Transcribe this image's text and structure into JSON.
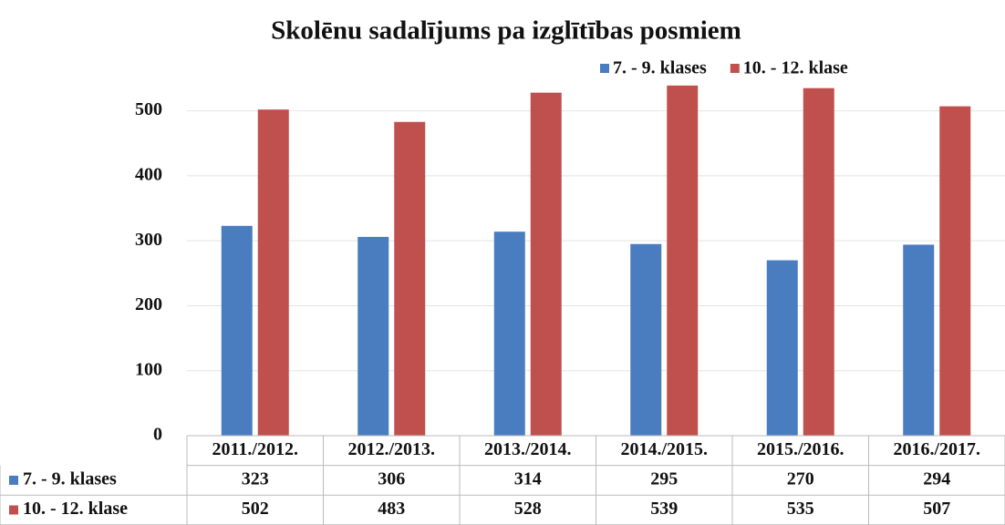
{
  "chart_data": {
    "type": "bar",
    "title": "Skolēnu sadalījums pa izglītības posmiem",
    "categories": [
      "2011./2012.",
      "2012./2013.",
      "2013./2014.",
      "2014./2015.",
      "2015./2016.",
      "2016./2017."
    ],
    "series": [
      {
        "name": "7. - 9. klases",
        "color": "#4a7cc0",
        "values": [
          323,
          306,
          314,
          295,
          270,
          294
        ]
      },
      {
        "name": "10. - 12. klase",
        "color": "#c0504d",
        "values": [
          502,
          483,
          528,
          539,
          535,
          507
        ]
      }
    ],
    "ylim": [
      0,
      550
    ],
    "yticks": [
      0,
      100,
      200,
      300,
      400,
      500
    ],
    "grid": true,
    "legend": "top-right",
    "data_table": true
  }
}
